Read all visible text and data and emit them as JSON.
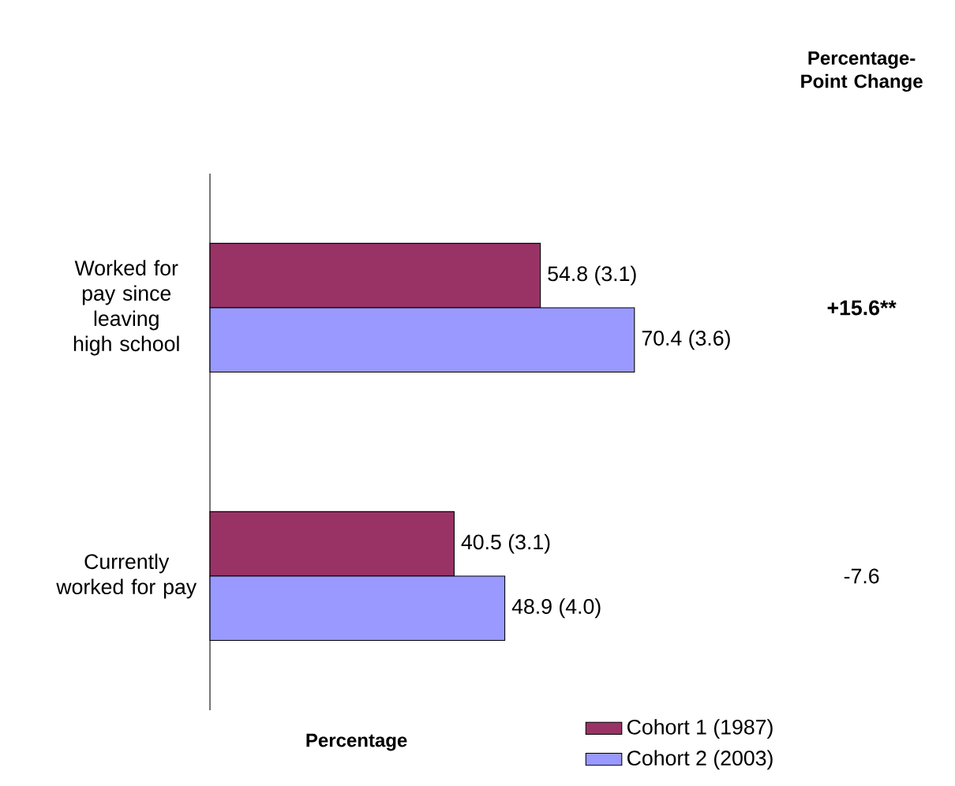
{
  "chart_data": {
    "type": "bar",
    "orientation": "horizontal",
    "xlabel": "Percentage",
    "categories": [
      "Worked for pay since leaving high school",
      "Currently worked for pay"
    ],
    "series": [
      {
        "name": "Cohort 1 (1987)",
        "color": "#993366",
        "values": [
          54.8,
          40.5
        ],
        "value_labels": [
          "54.8 (3.1)",
          "40.5 (3.1)"
        ]
      },
      {
        "name": "Cohort 2 (2003)",
        "color": "#9999ff",
        "values": [
          70.4,
          48.9
        ],
        "value_labels": [
          "70.4 (3.6)",
          "48.9 (4.0)"
        ]
      }
    ],
    "annotations": [
      "Percentage-Point Change",
      "+15.6**",
      "-7.6"
    ],
    "legend": "bottom right"
  }
}
